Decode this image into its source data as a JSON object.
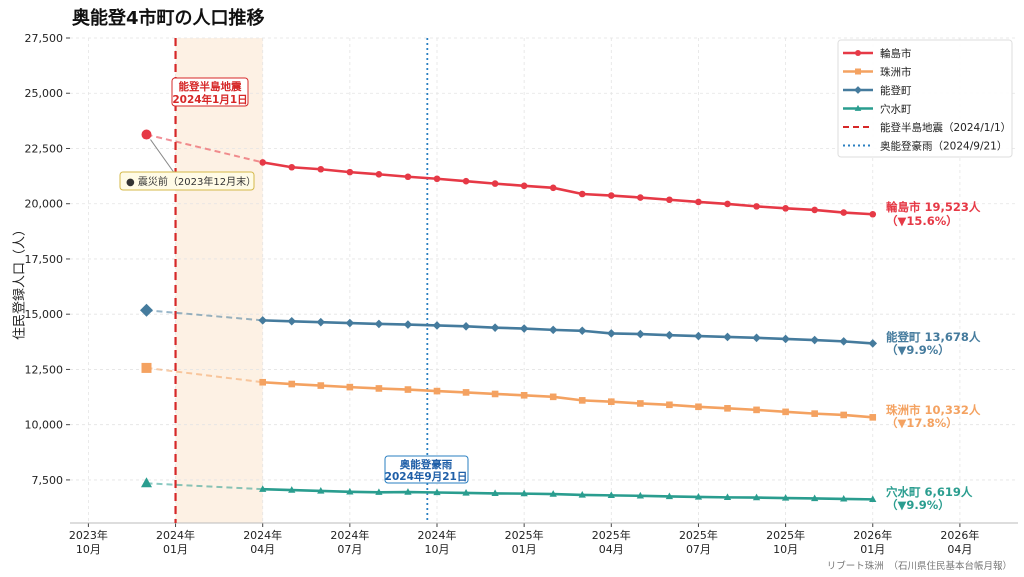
{
  "chart_data": {
    "type": "line",
    "title": "奥能登4市町の人口推移",
    "xlabel": "",
    "ylabel": "住民登録人口（人）",
    "ylim": [
      5550,
      27500
    ],
    "xlim": [
      "2023-09-12",
      "2026-06-01"
    ],
    "yticks": [
      7500,
      10000,
      12500,
      15000,
      17500,
      20000,
      22500,
      25000,
      27500
    ],
    "ytick_labels": [
      "7,500",
      "10,000",
      "12,500",
      "15,000",
      "17,500",
      "20,000",
      "22,500",
      "25,000",
      "27,500"
    ],
    "xticks": [
      "2023-10",
      "2024-01",
      "2024-04",
      "2024-07",
      "2024-10",
      "2025-01",
      "2025-04",
      "2025-07",
      "2025-10",
      "2026-01",
      "2026-04"
    ],
    "xtick_labels": [
      [
        "2023年",
        "10月"
      ],
      [
        "2024年",
        "01月"
      ],
      [
        "2024年",
        "04月"
      ],
      [
        "2024年",
        "07月"
      ],
      [
        "2024年",
        "10月"
      ],
      [
        "2025年",
        "01月"
      ],
      [
        "2025年",
        "04月"
      ],
      [
        "2025年",
        "07月"
      ],
      [
        "2025年",
        "10月"
      ],
      [
        "2026年",
        "01月"
      ],
      [
        "2026年",
        "04月"
      ]
    ],
    "grid": true,
    "legend_position": "top-right",
    "pre_quake_date": "2023-12",
    "x": [
      "2024-04",
      "2024-05",
      "2024-06",
      "2024-07",
      "2024-08",
      "2024-09",
      "2024-10",
      "2024-11",
      "2024-12",
      "2025-01",
      "2025-02",
      "2025-03",
      "2025-04",
      "2025-05",
      "2025-06",
      "2025-07",
      "2025-08",
      "2025-09",
      "2025-10",
      "2025-11",
      "2025-12",
      "2026-01"
    ],
    "series": [
      {
        "name": "輪島市",
        "color": "#e63946",
        "marker": "circle",
        "pre_quake": 23131,
        "values": [
          21870,
          21650,
          21560,
          21430,
          21330,
          21220,
          21130,
          21020,
          20910,
          20810,
          20720,
          20440,
          20370,
          20280,
          20180,
          20080,
          19990,
          19880,
          19790,
          19720,
          19600,
          19523
        ],
        "end_label": "輪島市 19,523人",
        "change_label": "（▼15.6%）"
      },
      {
        "name": "珠洲市",
        "color": "#f4a261",
        "marker": "square",
        "pre_quake": 12569,
        "values": [
          11920,
          11840,
          11770,
          11700,
          11640,
          11590,
          11520,
          11460,
          11390,
          11330,
          11260,
          11100,
          11040,
          10960,
          10900,
          10810,
          10740,
          10670,
          10580,
          10500,
          10440,
          10332
        ],
        "end_label": "珠洲市 10,332人",
        "change_label": "（▼17.8%）"
      },
      {
        "name": "能登町",
        "color": "#457b9d",
        "marker": "diamond",
        "pre_quake": 15181,
        "values": [
          14720,
          14680,
          14640,
          14600,
          14560,
          14530,
          14490,
          14450,
          14390,
          14350,
          14290,
          14250,
          14130,
          14100,
          14050,
          14010,
          13970,
          13930,
          13880,
          13830,
          13770,
          13678
        ],
        "end_label": "能登町 13,678人",
        "change_label": "（▼9.9%）"
      },
      {
        "name": "穴水町",
        "color": "#2a9d8f",
        "marker": "triangle",
        "pre_quake": 7347,
        "values": [
          7080,
          7040,
          7000,
          6960,
          6940,
          6950,
          6930,
          6910,
          6890,
          6880,
          6860,
          6820,
          6800,
          6780,
          6750,
          6730,
          6710,
          6700,
          6680,
          6660,
          6640,
          6619
        ],
        "end_label": "穴水町 6,619人",
        "change_label": "（▼9.9%）"
      }
    ],
    "events": [
      {
        "name": "能登半島地震（2024/1/1）",
        "date": "2024-01-01",
        "color": "#d62828",
        "style": "dashed",
        "annotation": [
          "能登半島地震",
          "2024年1月1日"
        ]
      },
      {
        "name": "奥能登豪雨（2024/9/21）",
        "date": "2024-09-21",
        "color": "#2a7fc1",
        "style": "dotted",
        "annotation": [
          "奥能登豪雨",
          "2024年9月21日"
        ]
      }
    ],
    "shaded_period": {
      "from": "2024-01-01",
      "to": "2024-04-01",
      "color": "#fdf1e4"
    },
    "pre_quake_annotation": "● 震災前（2023年12月末）"
  },
  "footer": "リブート珠洲　（石川県住民基本台帳月報）"
}
